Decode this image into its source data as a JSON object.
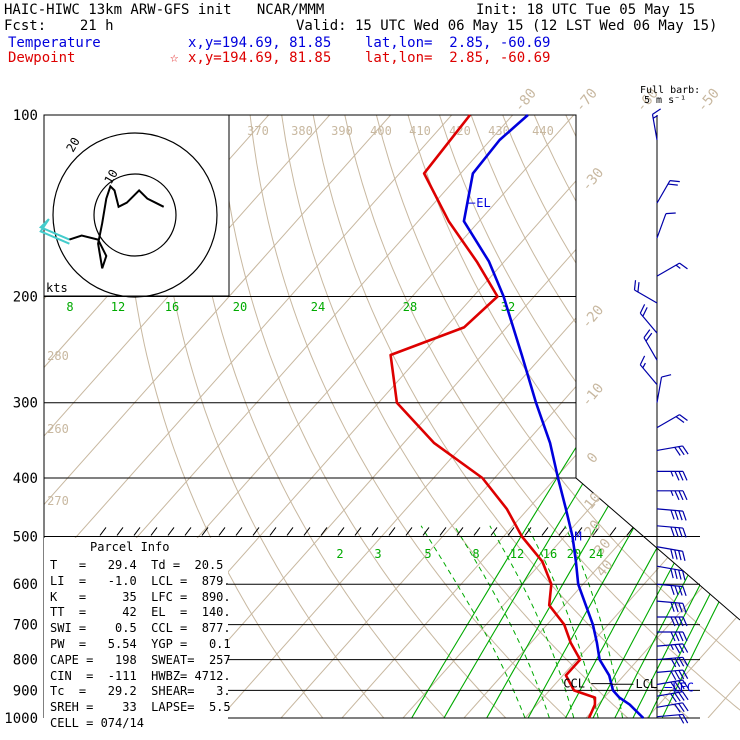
{
  "header": {
    "model_line": "HAIC-HIWC 13km ARW-GFS init   NCAR/MMM",
    "fcst_line": "Fcst:    21 h",
    "init_line": "Init: 18 UTC Tue 05 May 15",
    "valid_line": "Valid: 15 UTC Wed 06 May 15 (12 LST Wed 06 May 15)",
    "temp_label": "Temperature",
    "temp_coords": "x,y=194.69, 81.85    lat,lon=  2.85, -60.69",
    "dew_label": "Dewpoint",
    "dew_marker": "☆",
    "dew_coords": "x,y=194.69, 81.85    lat,lon=  2.85, -60.69",
    "barb_title_1": "Full barb:",
    "barb_title_2": "5 m s⁻¹"
  },
  "colors": {
    "temperature": "#0000dd",
    "dewpoint": "#dd0000",
    "isotherm": "#c8b8a0",
    "mixing_ratio": "#00aa00",
    "barb": "#0000aa",
    "grid": "#000000",
    "hodo_low": "#44cccc"
  },
  "chart_data": {
    "type": "line",
    "title": "Skew-T log-P sounding",
    "pressure_levels": [
      100,
      200,
      300,
      400,
      500,
      600,
      700,
      800,
      900,
      1000
    ],
    "isotherm_labels": [
      -80,
      -70,
      -60,
      -50,
      -40,
      -30,
      -20,
      -10,
      0,
      10,
      20,
      30,
      40
    ],
    "theta_labels": [
      370,
      380,
      390,
      400,
      410,
      420,
      430,
      440,
      280,
      270,
      260
    ],
    "mixing_ratio_labels_upper": [
      8,
      12,
      16,
      20,
      24,
      28,
      32
    ],
    "mixing_ratio_labels_lower": [
      2,
      3,
      5,
      8,
      12,
      16,
      20,
      24
    ],
    "series": [
      {
        "name": "Temperature",
        "p": [
          1000,
          950,
          925,
          900,
          850,
          800,
          750,
          700,
          650,
          600,
          550,
          500,
          450,
          400,
          350,
          300,
          250,
          200,
          175,
          150,
          125,
          110,
          100
        ],
        "values": [
          29.4,
          25.2,
          22.5,
          20.4,
          17.6,
          13.7,
          10.8,
          7.5,
          3.5,
          -0.8,
          -4.5,
          -8.7,
          -13.8,
          -19.6,
          -26.0,
          -34.2,
          -43.5,
          -55.0,
          -62.5,
          -72.5,
          -78.0,
          -78.5,
          -77.5
        ]
      },
      {
        "name": "Dewpoint",
        "p": [
          1000,
          950,
          925,
          900,
          850,
          800,
          750,
          700,
          650,
          600,
          550,
          500,
          450,
          400,
          350,
          300,
          250,
          225,
          200,
          175,
          150,
          125,
          100
        ],
        "values": [
          20.5,
          19.5,
          18.5,
          14.0,
          10.5,
          10.5,
          6.5,
          2.8,
          -2.5,
          -5.2,
          -10.0,
          -17.0,
          -23.5,
          -32.0,
          -45.0,
          -57.0,
          -65.0,
          -57.0,
          -56.0,
          -64.5,
          -75.0,
          -86.0,
          -87.0
        ]
      }
    ],
    "markers": {
      "EL": 140,
      "M": 500,
      "CCL": 877,
      "LCL": 879,
      "LFC": 890
    },
    "marker_labels": {
      "EL": "EL",
      "M": "M",
      "CCL": "CCL",
      "LCL": "LCL",
      "LFC": "LFC"
    },
    "hodograph": {
      "unit_label": "kts",
      "ring_labels": [
        "10",
        "20"
      ],
      "points_kts": [
        [
          -16,
          -6
        ],
        [
          -13,
          -5
        ],
        [
          -9,
          -6
        ],
        [
          -7,
          -10
        ],
        [
          -8,
          -13
        ],
        [
          -9,
          -7
        ],
        [
          -8,
          -2
        ],
        [
          -7,
          4
        ],
        [
          -6,
          7
        ],
        [
          -5,
          6
        ],
        [
          -4,
          2
        ],
        [
          -2,
          3
        ],
        [
          1,
          6
        ],
        [
          3,
          4
        ],
        [
          5,
          3
        ],
        [
          7,
          2
        ]
      ],
      "low_points_kts": [
        [
          -16,
          -6
        ],
        [
          -23,
          -3
        ],
        [
          -21,
          -1
        ],
        [
          -23,
          -4
        ],
        [
          -16,
          -7
        ]
      ]
    },
    "wind_barbs": [
      {
        "p": 110,
        "spd": 8,
        "dir": 350
      },
      {
        "p": 140,
        "spd": 10,
        "dir": 30
      },
      {
        "p": 160,
        "spd": 6,
        "dir": 20
      },
      {
        "p": 185,
        "spd": 8,
        "dir": 60
      },
      {
        "p": 205,
        "spd": 12,
        "dir": 300
      },
      {
        "p": 230,
        "spd": 10,
        "dir": 320
      },
      {
        "p": 255,
        "spd": 10,
        "dir": 330
      },
      {
        "p": 280,
        "spd": 8,
        "dir": 320
      },
      {
        "p": 300,
        "spd": 6,
        "dir": 10
      },
      {
        "p": 330,
        "spd": 12,
        "dir": 60
      },
      {
        "p": 360,
        "spd": 15,
        "dir": 80
      },
      {
        "p": 390,
        "spd": 18,
        "dir": 90
      },
      {
        "p": 420,
        "spd": 18,
        "dir": 90
      },
      {
        "p": 450,
        "spd": 20,
        "dir": 95
      },
      {
        "p": 480,
        "spd": 20,
        "dir": 95
      },
      {
        "p": 520,
        "spd": 22,
        "dir": 100
      },
      {
        "p": 560,
        "spd": 22,
        "dir": 100
      },
      {
        "p": 600,
        "spd": 22,
        "dir": 95
      },
      {
        "p": 640,
        "spd": 22,
        "dir": 95
      },
      {
        "p": 680,
        "spd": 20,
        "dir": 90
      },
      {
        "p": 720,
        "spd": 20,
        "dir": 90
      },
      {
        "p": 760,
        "spd": 18,
        "dir": 85
      },
      {
        "p": 800,
        "spd": 20,
        "dir": 85
      },
      {
        "p": 840,
        "spd": 22,
        "dir": 85
      },
      {
        "p": 880,
        "spd": 22,
        "dir": 80
      },
      {
        "p": 920,
        "spd": 20,
        "dir": 80
      },
      {
        "p": 960,
        "spd": 16,
        "dir": 80
      },
      {
        "p": 995,
        "spd": 12,
        "dir": 85
      }
    ]
  },
  "parcel": {
    "title": "Parcel Info",
    "rows": [
      "T   =   29.4  Td =  20.5",
      "LI  =   -1.0  LCL =  879.",
      "K   =     35  LFC =  890.",
      "TT  =     42  EL  =  140.",
      "SWI =    0.5  CCL =  877.",
      "PW  =   5.54  YGP =   0.1",
      "CAPE =   198  SWEAT=  257",
      "CIN  =  -111  HWBZ= 4712.",
      "Tc  =   29.2  SHEAR=   3.",
      "SREH =    33  LAPSE=  5.5",
      "CELL = 074/14"
    ]
  }
}
